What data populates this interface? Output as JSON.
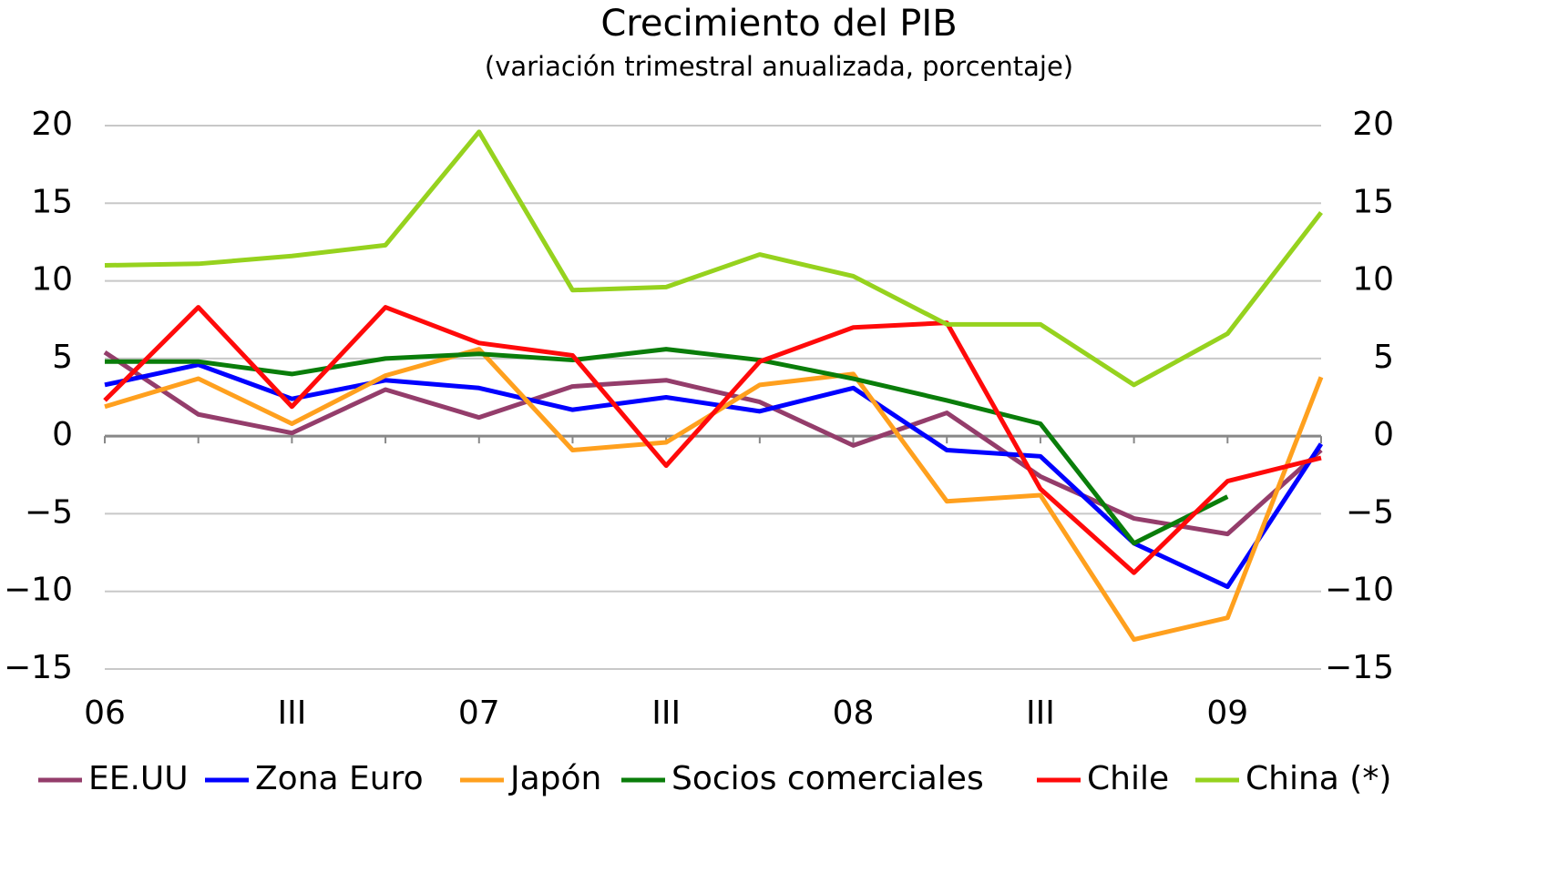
{
  "chart_data": {
    "type": "line",
    "title": "Crecimiento del PIB",
    "subtitle": "(variación trimestral anualizada, porcentaje)",
    "categories": [
      "06",
      null,
      "III",
      null,
      "07",
      null,
      "III",
      null,
      "08",
      null,
      "III",
      null,
      "09",
      null
    ],
    "series": [
      {
        "name": "EE.UU",
        "color": "#943d6b",
        "values": [
          5.4,
          1.4,
          0.2,
          3.0,
          1.2,
          3.2,
          3.6,
          2.2,
          -0.6,
          1.5,
          -2.6,
          -5.3,
          -6.3,
          -0.9
        ]
      },
      {
        "name": "Zona Euro",
        "color": "#0000ff",
        "values": [
          3.3,
          4.6,
          2.4,
          3.6,
          3.1,
          1.7,
          2.5,
          1.6,
          3.1,
          -0.9,
          -1.3,
          -6.9,
          -9.7,
          -0.5
        ]
      },
      {
        "name": "Japón",
        "color": "#ffa01e",
        "values": [
          1.9,
          3.7,
          0.8,
          3.9,
          5.6,
          -0.9,
          -0.4,
          3.3,
          4.0,
          -4.2,
          -3.8,
          -13.1,
          -11.7,
          3.8
        ]
      },
      {
        "name": "Socios comerciales",
        "color": "#0a7d0a",
        "values": [
          4.8,
          4.8,
          4.0,
          5.0,
          5.3,
          4.9,
          5.6,
          4.9,
          3.7,
          2.3,
          0.8,
          -6.9,
          -3.9,
          null
        ]
      },
      {
        "name": "Chile",
        "color": "#ff0a0a",
        "values": [
          2.3,
          8.3,
          1.9,
          8.3,
          6.0,
          5.2,
          -1.9,
          4.8,
          7.0,
          7.3,
          -3.4,
          -8.8,
          -2.9,
          -1.4
        ]
      },
      {
        "name": "China (*)",
        "color": "#96d21e",
        "values": [
          11.0,
          11.1,
          11.6,
          12.3,
          19.6,
          9.4,
          9.6,
          11.7,
          10.3,
          7.2,
          7.2,
          3.3,
          6.6,
          14.4
        ]
      }
    ],
    "ylim": [
      -15,
      20
    ],
    "yticks": [
      {
        "value": -15,
        "label": "−15"
      },
      {
        "value": -10,
        "label": "−10"
      },
      {
        "value": -5,
        "label": "−5"
      },
      0,
      5,
      10,
      15,
      20
    ],
    "y2lim": [
      -15,
      20
    ],
    "y2ticks": [
      {
        "value": -15,
        "label": "−15"
      },
      {
        "value": -10,
        "label": "−10"
      },
      {
        "value": -5,
        "label": "−5"
      },
      0,
      5,
      10,
      15,
      20
    ],
    "grid": true,
    "legend": "bottom"
  }
}
